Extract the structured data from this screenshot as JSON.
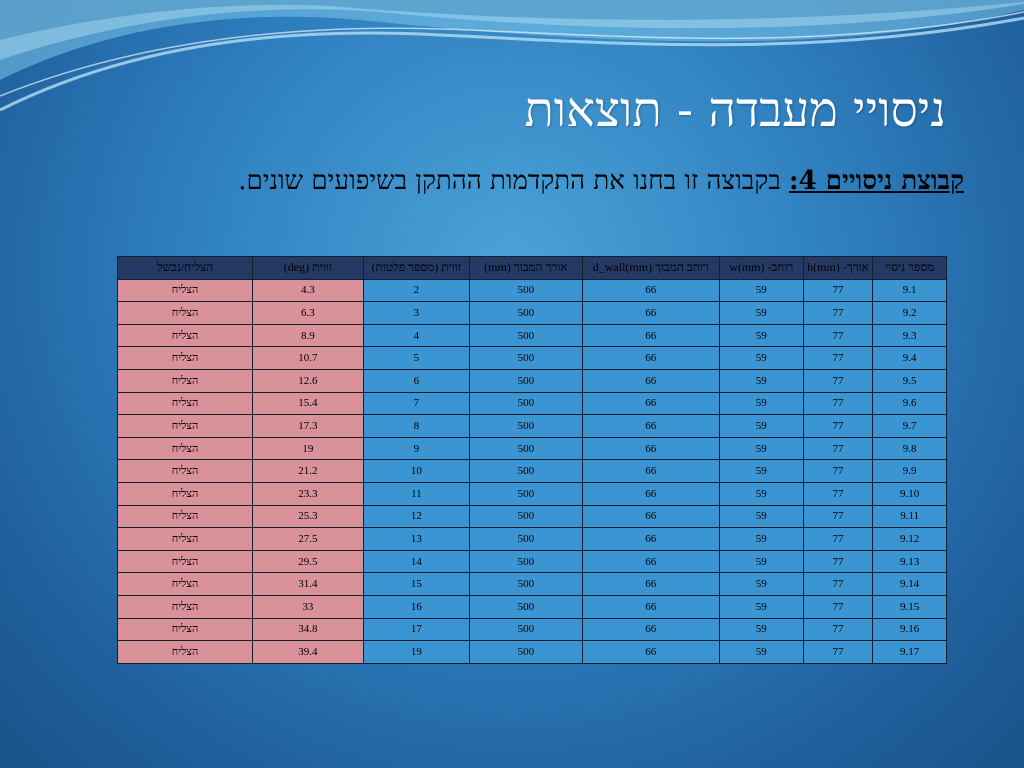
{
  "slide": {
    "title": "ניסויי מעבדה - תוצאות",
    "lead": "קבוצת ניסויים 4:",
    "text": " בקבוצה זו בחנו את התקדמות ההתקן בשיפועים שונים."
  },
  "table": {
    "headers": [
      "מספר ניסוי",
      "אורך- h(mm)",
      "רוחב- w(mm)",
      "רוחב המבוך d_wall(mm)",
      "אורך המבוך (mm)",
      "זווית (מספר פלטות)",
      "זווית (deg)",
      "הצליח/נכשל"
    ],
    "rows": [
      [
        "9.1",
        "77",
        "59",
        "66",
        "500",
        "2",
        "4.3",
        "הצליח"
      ],
      [
        "9.2",
        "77",
        "59",
        "66",
        "500",
        "3",
        "6.3",
        "הצליח"
      ],
      [
        "9.3",
        "77",
        "59",
        "66",
        "500",
        "4",
        "8.9",
        "הצליח"
      ],
      [
        "9.4",
        "77",
        "59",
        "66",
        "500",
        "5",
        "10.7",
        "הצליח"
      ],
      [
        "9.5",
        "77",
        "59",
        "66",
        "500",
        "6",
        "12.6",
        "הצליח"
      ],
      [
        "9.6",
        "77",
        "59",
        "66",
        "500",
        "7",
        "15.4",
        "הצליח"
      ],
      [
        "9.7",
        "77",
        "59",
        "66",
        "500",
        "8",
        "17.3",
        "הצליח"
      ],
      [
        "9.8",
        "77",
        "59",
        "66",
        "500",
        "9",
        "19",
        "הצליח"
      ],
      [
        "9.9",
        "77",
        "59",
        "66",
        "500",
        "10",
        "21.2",
        "הצליח"
      ],
      [
        "9.10",
        "77",
        "59",
        "66",
        "500",
        "11",
        "23.3",
        "הצליח"
      ],
      [
        "9.11",
        "77",
        "59",
        "66",
        "500",
        "12",
        "25.3",
        "הצליח"
      ],
      [
        "9.12",
        "77",
        "59",
        "66",
        "500",
        "13",
        "27.5",
        "הצליח"
      ],
      [
        "9.13",
        "77",
        "59",
        "66",
        "500",
        "14",
        "29.5",
        "הצליח"
      ],
      [
        "9.14",
        "77",
        "59",
        "66",
        "500",
        "15",
        "31.4",
        "הצליח"
      ],
      [
        "9.15",
        "77",
        "59",
        "66",
        "500",
        "16",
        "33",
        "הצליח"
      ],
      [
        "9.16",
        "77",
        "59",
        "66",
        "500",
        "17",
        "34.8",
        "הצליח"
      ],
      [
        "9.17",
        "77",
        "59",
        "66",
        "500",
        "19",
        "39.4",
        "הצליח"
      ]
    ]
  },
  "colors": {
    "background": "#2f7fbf",
    "header_cell": "#243a64",
    "data_cell": "#3a95d2",
    "highlight_cell": "#d9929a"
  }
}
